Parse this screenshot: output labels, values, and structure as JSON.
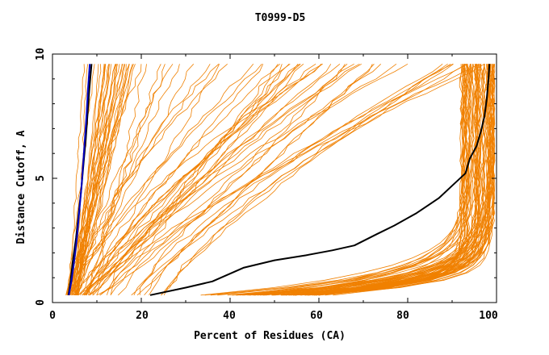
{
  "chart_data": {
    "type": "line",
    "title": "T0999-D5",
    "xlabel": "Percent of Residues (CA)",
    "ylabel": "Distance Cutoff, A",
    "xlim": [
      0,
      100
    ],
    "ylim": [
      0,
      10
    ],
    "x_ticks": [
      0,
      20,
      40,
      60,
      80,
      100
    ],
    "y_ticks": [
      0,
      5,
      10
    ],
    "grid": false,
    "colors": {
      "background_series": "#f08000",
      "highlight_black": "#000000",
      "highlight_blue": "#0000c0",
      "axes": "#000000"
    },
    "series": [
      {
        "name": "black-main",
        "color": "#000000",
        "points": [
          [
            22,
            0.3
          ],
          [
            30,
            0.6
          ],
          [
            36,
            0.85
          ],
          [
            43,
            1.4
          ],
          [
            50,
            1.7
          ],
          [
            57,
            1.9
          ],
          [
            63,
            2.1
          ],
          [
            68,
            2.3
          ],
          [
            73,
            2.75
          ],
          [
            77,
            3.1
          ],
          [
            82,
            3.6
          ],
          [
            87,
            4.2
          ],
          [
            90,
            4.7
          ],
          [
            93,
            5.2
          ],
          [
            94,
            5.8
          ],
          [
            95.5,
            6.3
          ],
          [
            96.5,
            6.9
          ],
          [
            97.3,
            7.5
          ],
          [
            97.8,
            8.2
          ],
          [
            98.2,
            9.0
          ],
          [
            98.4,
            9.6
          ]
        ]
      },
      {
        "name": "black-left",
        "color": "#000000",
        "points": [
          [
            3.6,
            0.3
          ],
          [
            4.1,
            0.9
          ],
          [
            4.6,
            1.7
          ],
          [
            5.3,
            2.6
          ],
          [
            5.9,
            3.6
          ],
          [
            6.5,
            4.6
          ],
          [
            7,
            5.6
          ],
          [
            7.5,
            6.6
          ],
          [
            7.9,
            7.6
          ],
          [
            8.3,
            8.6
          ],
          [
            8.8,
            9.6
          ]
        ]
      },
      {
        "name": "blue-left",
        "color": "#0000c0",
        "points": [
          [
            3.7,
            0.3
          ],
          [
            4.3,
            0.9
          ],
          [
            4.9,
            1.7
          ],
          [
            5.5,
            2.6
          ],
          [
            6,
            3.6
          ],
          [
            6.5,
            4.6
          ],
          [
            6.9,
            5.6
          ],
          [
            7.3,
            6.6
          ],
          [
            7.7,
            7.6
          ],
          [
            8,
            8.6
          ],
          [
            8.4,
            9.6
          ]
        ]
      }
    ],
    "background_series_count": 150
  }
}
